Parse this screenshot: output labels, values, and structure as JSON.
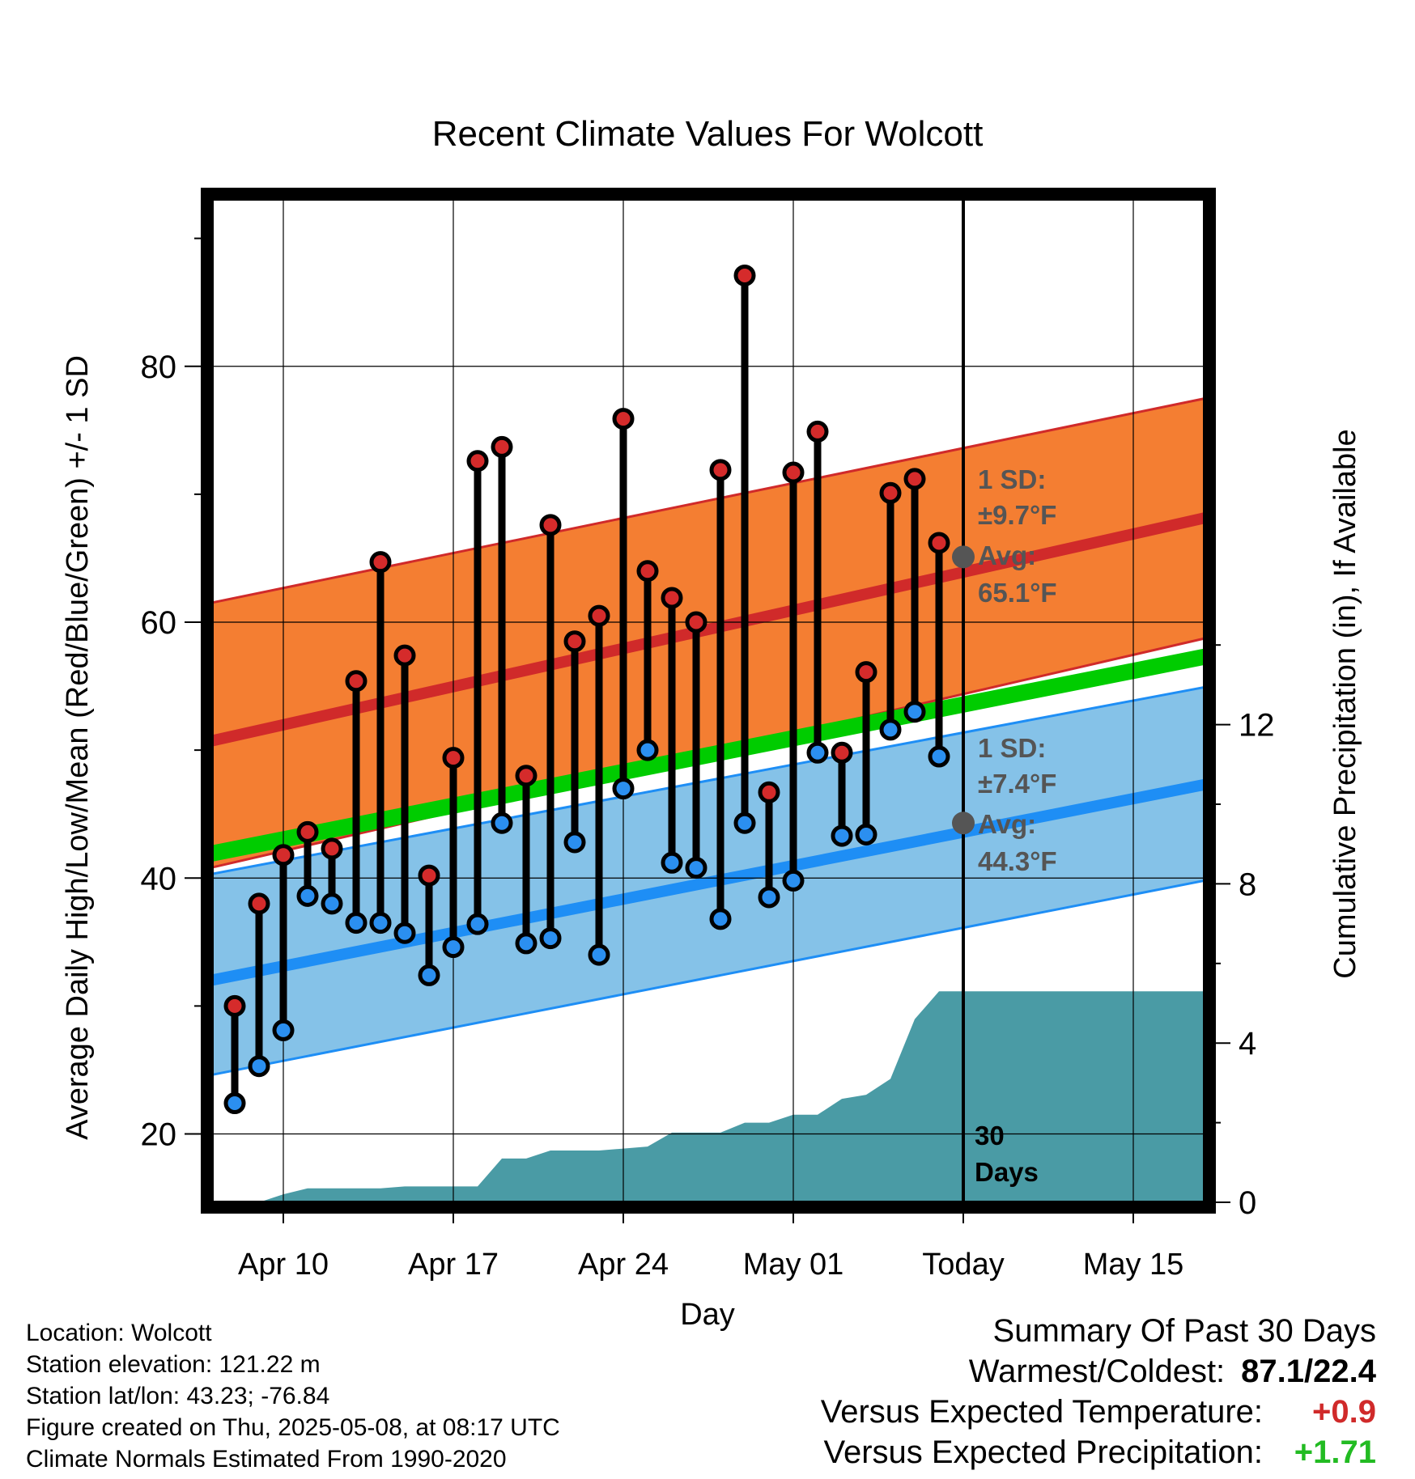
{
  "chart_data": {
    "type": "line",
    "title": "Recent Climate Values For Wolcott",
    "xlabel": "Day",
    "ylabel": "Average Daily High/Low/Mean (Red/Blue/Green) +/- 1 SD",
    "y2label": "Cumulative Precipitation (in), If Available",
    "x_ticks": [
      "Apr 10",
      "Apr 17",
      "Apr 24",
      "May 01",
      "Today",
      "May 15"
    ],
    "ylim": [
      15,
      92
    ],
    "y_ticks": [
      20,
      40,
      60,
      80
    ],
    "y2lim": [
      0,
      21
    ],
    "y2_ticks": [
      0,
      4,
      8,
      12
    ],
    "grid": true,
    "daily": {
      "dates": [
        "Apr 08",
        "Apr 09",
        "Apr 10",
        "Apr 11",
        "Apr 12",
        "Apr 13",
        "Apr 14",
        "Apr 15",
        "Apr 16",
        "Apr 17",
        "Apr 18",
        "Apr 19",
        "Apr 20",
        "Apr 21",
        "Apr 22",
        "Apr 23",
        "Apr 24",
        "Apr 25",
        "Apr 26",
        "Apr 27",
        "Apr 28",
        "Apr 29",
        "Apr 30",
        "May 01",
        "May 02",
        "May 03",
        "May 04",
        "May 05",
        "May 06",
        "May 07"
      ],
      "high": [
        30.0,
        38.0,
        41.8,
        43.6,
        42.3,
        55.4,
        64.7,
        57.4,
        40.2,
        49.4,
        72.6,
        73.7,
        48.0,
        67.6,
        58.5,
        60.5,
        75.9,
        64.0,
        61.9,
        60.0,
        71.9,
        87.1,
        46.7,
        71.7,
        74.9,
        49.8,
        56.1,
        70.1,
        71.2,
        66.2
      ],
      "low": [
        22.4,
        25.3,
        28.1,
        38.6,
        38.0,
        36.5,
        36.5,
        35.7,
        32.4,
        34.6,
        36.4,
        44.3,
        34.9,
        35.3,
        42.8,
        34.0,
        47.0,
        50.0,
        41.2,
        40.8,
        36.8,
        44.3,
        38.5,
        39.8,
        49.8,
        43.3,
        43.4,
        51.6,
        53.0,
        49.5
      ]
    },
    "normals": {
      "dates": [
        "Apr 07",
        "May 19"
      ],
      "high_avg": [
        50.7,
        68.6
      ],
      "high_upper": [
        61.5,
        77.9
      ],
      "high_lower": [
        40.8,
        59.2
      ],
      "mean_avg": [
        41.9,
        57.7
      ],
      "low_avg": [
        32.0,
        47.7
      ],
      "low_upper": [
        40.3,
        55.3
      ],
      "low_lower": [
        24.6,
        40.2
      ]
    },
    "precip": {
      "dates": [
        "Apr 07",
        "Apr 08",
        "Apr 09",
        "Apr 10",
        "Apr 11",
        "Apr 12",
        "Apr 13",
        "Apr 14",
        "Apr 15",
        "Apr 16",
        "Apr 17",
        "Apr 18",
        "Apr 19",
        "Apr 20",
        "Apr 21",
        "Apr 22",
        "Apr 23",
        "Apr 24",
        "Apr 25",
        "Apr 26",
        "Apr 27",
        "Apr 28",
        "Apr 29",
        "Apr 30",
        "May 01",
        "May 02",
        "May 03",
        "May 04",
        "May 05",
        "May 06",
        "May 07",
        "May 08",
        "May 19"
      ],
      "cumulative": [
        0,
        0,
        0,
        0.2,
        0.35,
        0.35,
        0.35,
        0.35,
        0.4,
        0.4,
        0.4,
        0.4,
        1.1,
        1.1,
        1.3,
        1.3,
        1.3,
        1.35,
        1.4,
        1.75,
        1.75,
        1.75,
        2.0,
        2.0,
        2.2,
        2.2,
        2.6,
        2.7,
        3.1,
        4.6,
        5.3,
        5.3,
        5.3
      ]
    },
    "annotations": {
      "high_sd_label": "1 SD:",
      "high_sd_value": "±9.7°F",
      "high_avg_label": "Avg:",
      "high_avg_value": "65.1°F",
      "low_sd_label": "1 SD:",
      "low_sd_value": "±7.4°F",
      "low_avg_label": "Avg:",
      "low_avg_value": "44.3°F",
      "days_label_1": "30",
      "days_label_2": "Days"
    },
    "colors": {
      "high_band": "#f47e32",
      "high_line": "#d02a2a",
      "low_band": "#85c2e8",
      "low_line": "#1e8ef5",
      "mean_line": "#00cc00",
      "precip": "#4a9ba5",
      "high_marker": "#d52b2b",
      "low_marker": "#2b8ff0",
      "annotation": "#555555"
    }
  },
  "info": {
    "location": "Location: Wolcott",
    "elevation": "Station elevation: 121.22 m",
    "latlon": "Station lat/lon: 43.23; -76.84",
    "created": "Figure created on Thu, 2025-05-08, at 08:17 UTC",
    "normals": "Climate Normals Estimated From 1990-2020"
  },
  "summary": {
    "heading": "Summary Of Past 30 Days",
    "warm_cold_label": "Warmest/Coldest:",
    "warm_cold_value": "87.1/22.4",
    "temp_label": "Versus Expected Temperature:",
    "temp_value": "+0.9",
    "temp_color": "#d02a2a",
    "precip_label": "Versus Expected Precipitation:",
    "precip_value": "+1.71",
    "precip_color": "#22bb22"
  }
}
